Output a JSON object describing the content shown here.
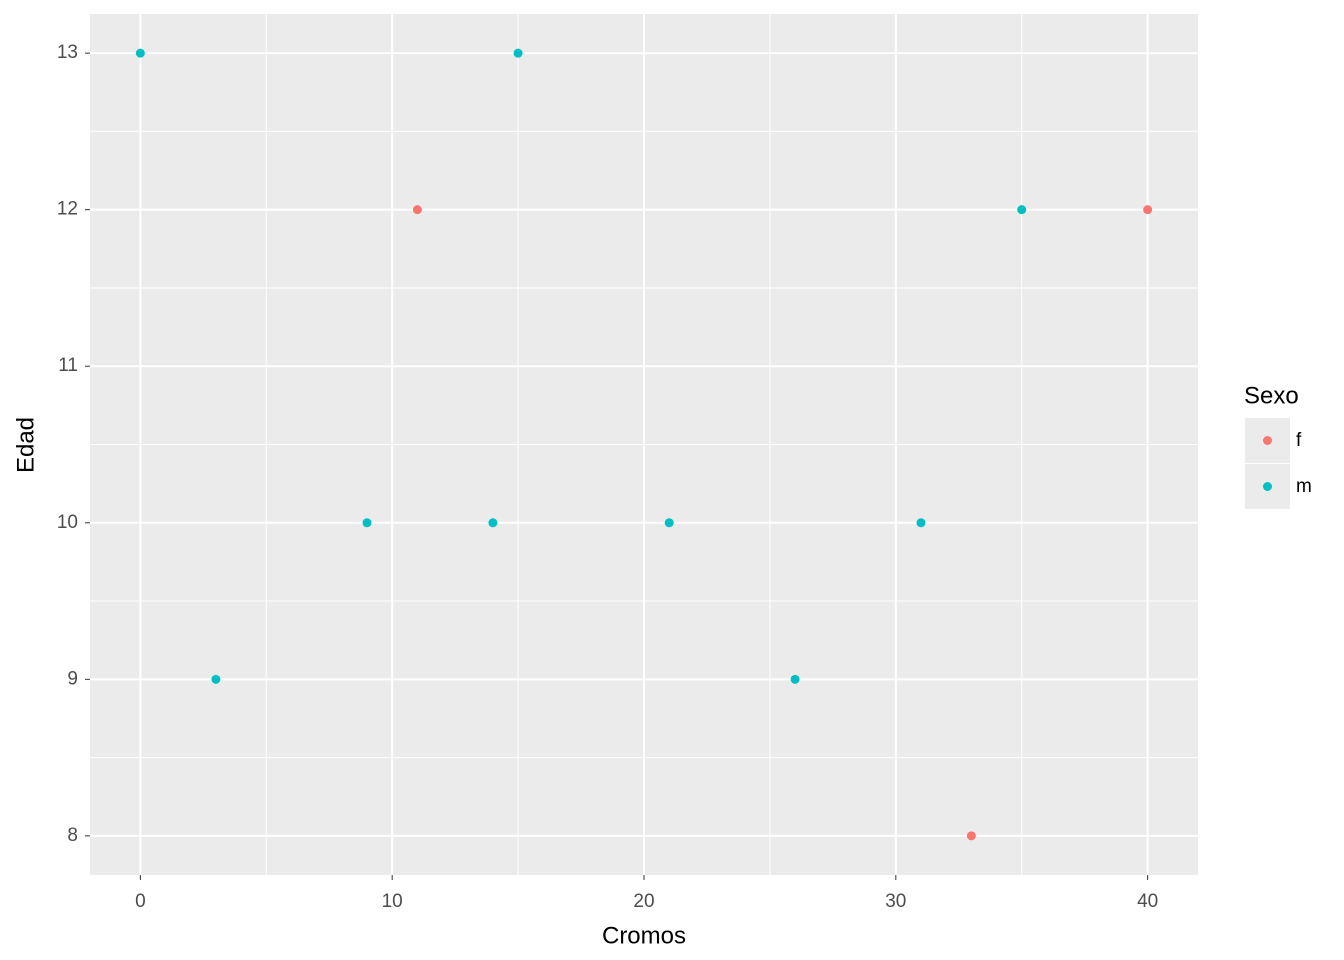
{
  "chart_data": {
    "type": "scatter",
    "x_label": "Cromos",
    "y_label": "Edad",
    "legend_title": "Sexo",
    "legend_position": "right",
    "series": [
      {
        "name": "f",
        "color": "#F8766D",
        "x": [
          11,
          33,
          40
        ],
        "values": [
          12,
          8,
          12
        ]
      },
      {
        "name": "m",
        "color": "#00BFC4",
        "x": [
          0,
          3,
          9,
          14,
          15,
          21,
          26,
          31,
          35
        ],
        "values": [
          13,
          9,
          10,
          10,
          13,
          10,
          9,
          10,
          12
        ]
      }
    ],
    "xlim": [
      -2,
      42
    ],
    "xticks": [
      0,
      10,
      20,
      30,
      40
    ],
    "xminorticks": [
      5,
      15,
      25,
      35
    ],
    "ylim": [
      7.75,
      13.25
    ],
    "yticks": [
      8,
      9,
      10,
      11,
      12,
      13
    ],
    "yminorticks": [
      8.5,
      9.5,
      10.5,
      11.5,
      12.5
    ],
    "grid": true
  }
}
